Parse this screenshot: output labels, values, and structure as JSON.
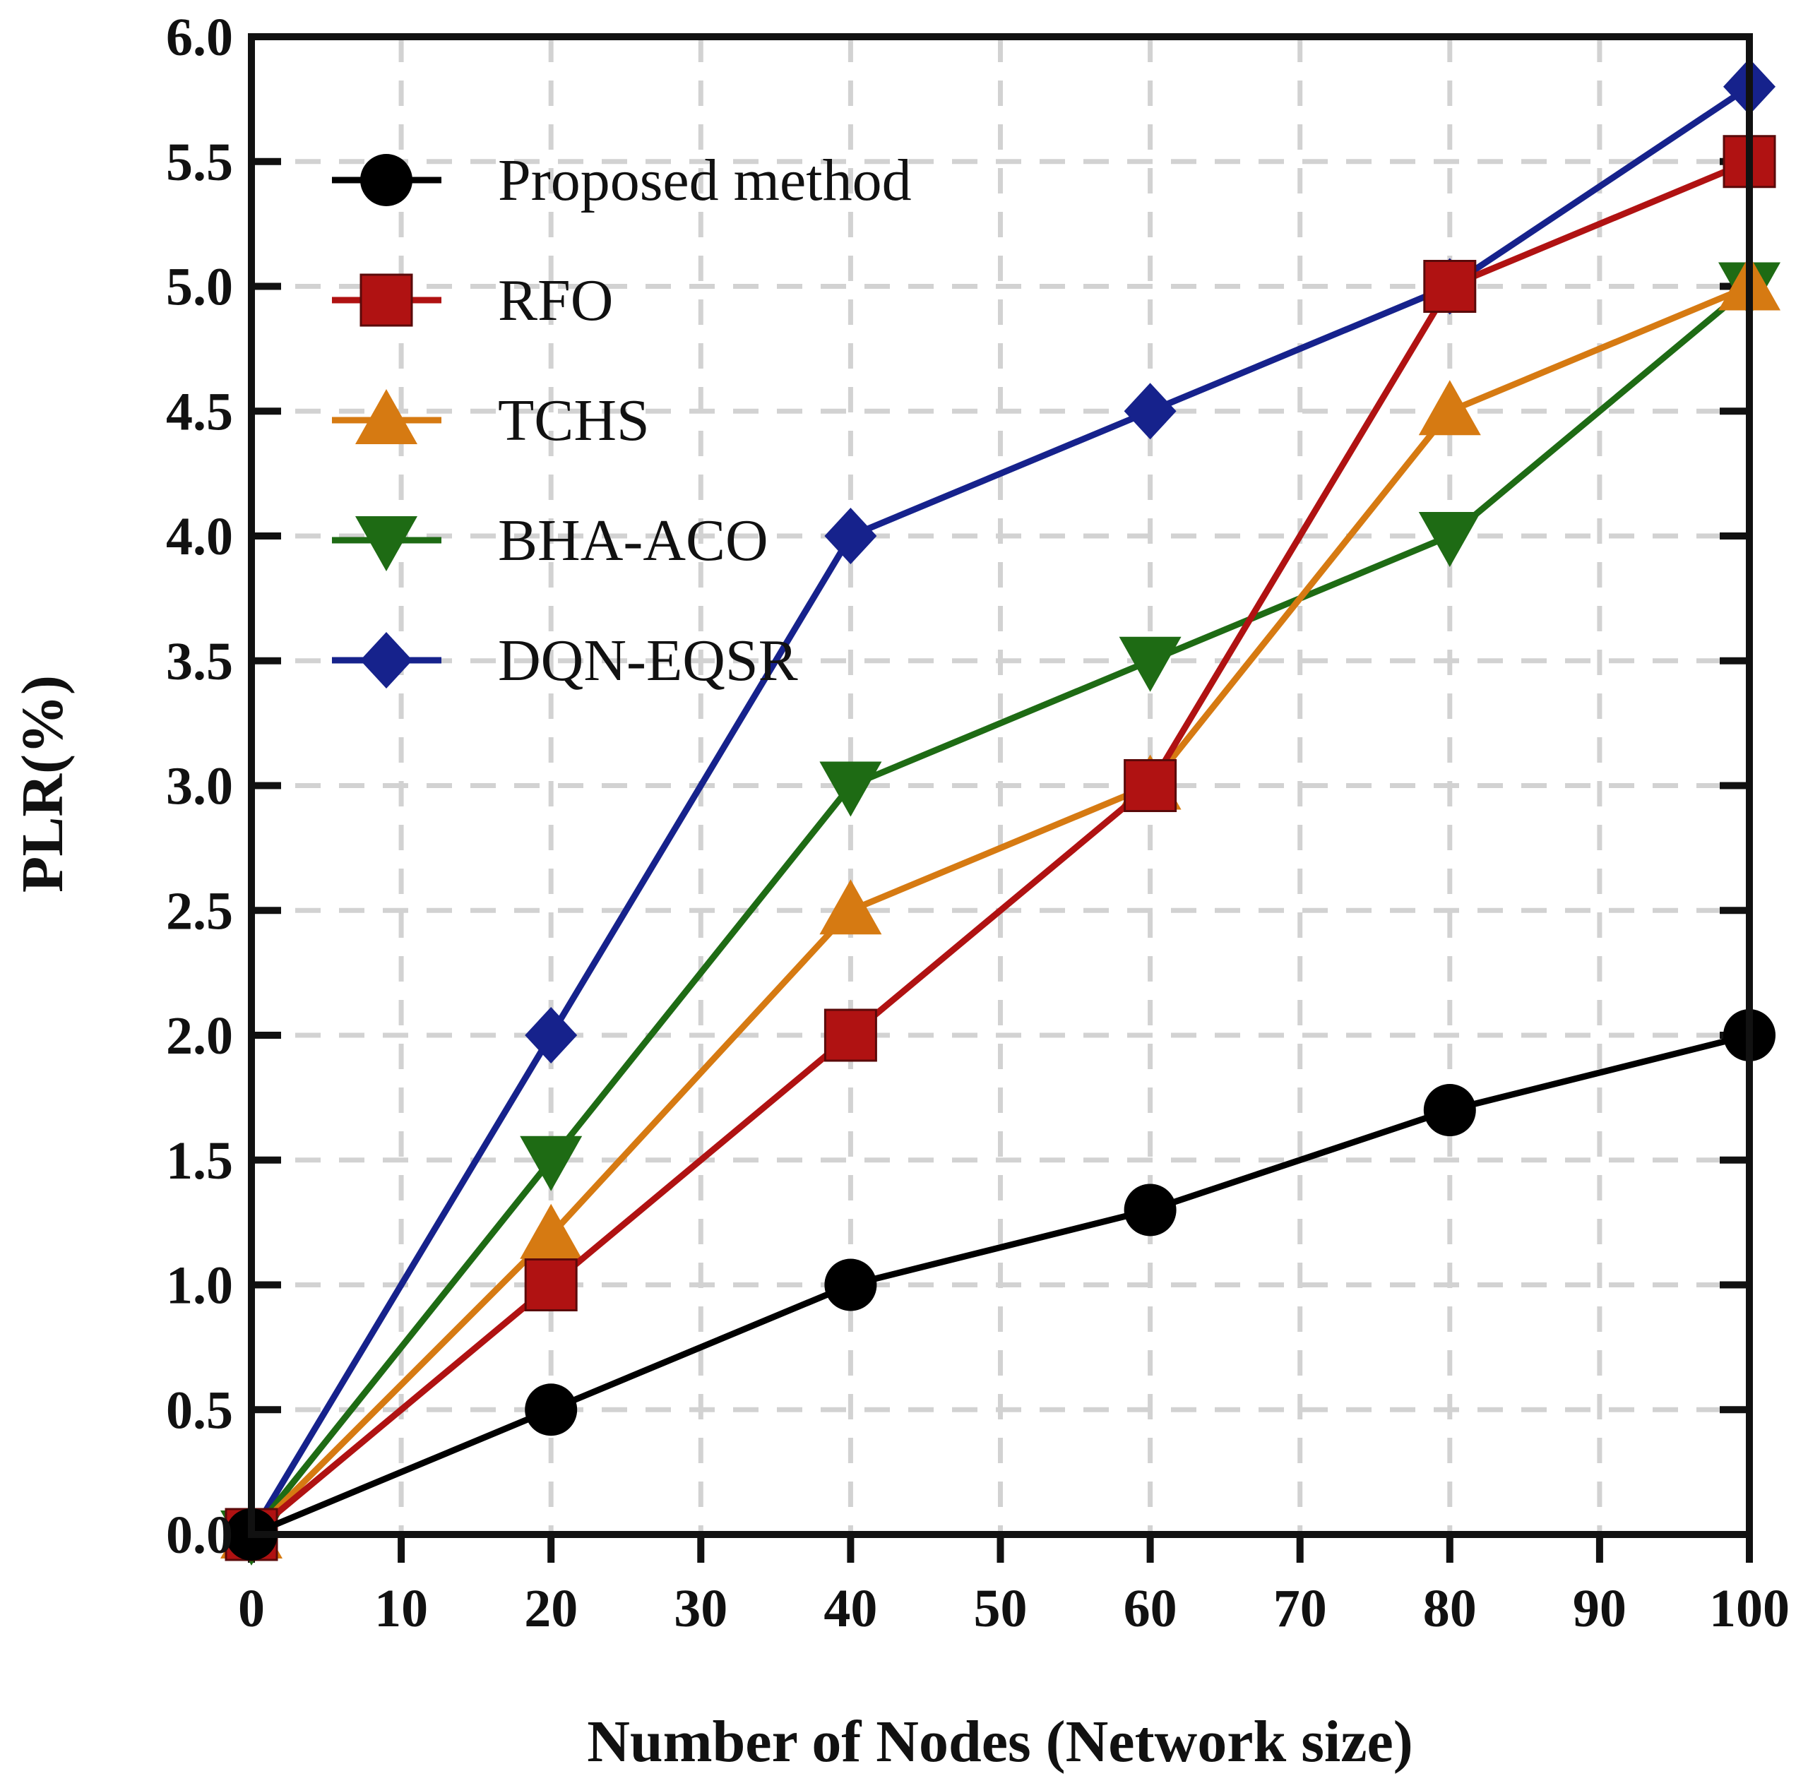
{
  "chart_data": {
    "type": "line",
    "title": "",
    "xlabel": "Number of Nodes (Network size)",
    "ylabel": "PLR(%)",
    "xlim": [
      0,
      100
    ],
    "ylim": [
      0,
      6
    ],
    "x_ticks": [
      0,
      10,
      20,
      30,
      40,
      50,
      60,
      70,
      80,
      90,
      100
    ],
    "x_tick_labels": [
      "0",
      "10",
      "20",
      "30",
      "40",
      "50",
      "60",
      "70",
      "80",
      "90",
      "100"
    ],
    "y_ticks": [
      0,
      0.5,
      1,
      1.5,
      2,
      2.5,
      3,
      3.5,
      4,
      4.5,
      5,
      5.5,
      6
    ],
    "y_tick_labels": [
      "0.0",
      "0.5",
      "1.0",
      "1.5",
      "2.0",
      "2.5",
      "3.0",
      "3.5",
      "4.0",
      "4.5",
      "5.0",
      "5.5",
      "6.0"
    ],
    "grid": true,
    "legend_position": "top-left",
    "x": [
      0,
      20,
      40,
      60,
      80,
      100
    ],
    "series": [
      {
        "name": "Proposed method",
        "marker": "circle",
        "color": "#000000",
        "values": [
          0,
          0.5,
          1.0,
          1.3,
          1.7,
          2.0
        ]
      },
      {
        "name": "RFO",
        "marker": "square",
        "color": "#B01212",
        "values": [
          0,
          1.0,
          2.0,
          3.0,
          5.0,
          5.5
        ]
      },
      {
        "name": "TCHS",
        "marker": "triangle-up",
        "color": "#D67A12",
        "values": [
          0,
          1.2,
          2.5,
          3.0,
          4.5,
          5.0
        ]
      },
      {
        "name": "BHA-ACO",
        "marker": "triangle-down",
        "color": "#1E6B14",
        "values": [
          0,
          1.5,
          3.0,
          3.5,
          4.0,
          5.0
        ]
      },
      {
        "name": "DQN-EQSR",
        "marker": "diamond",
        "color": "#16228C",
        "values": [
          0,
          2.0,
          4.0,
          4.5,
          5.0,
          5.8
        ]
      }
    ]
  }
}
